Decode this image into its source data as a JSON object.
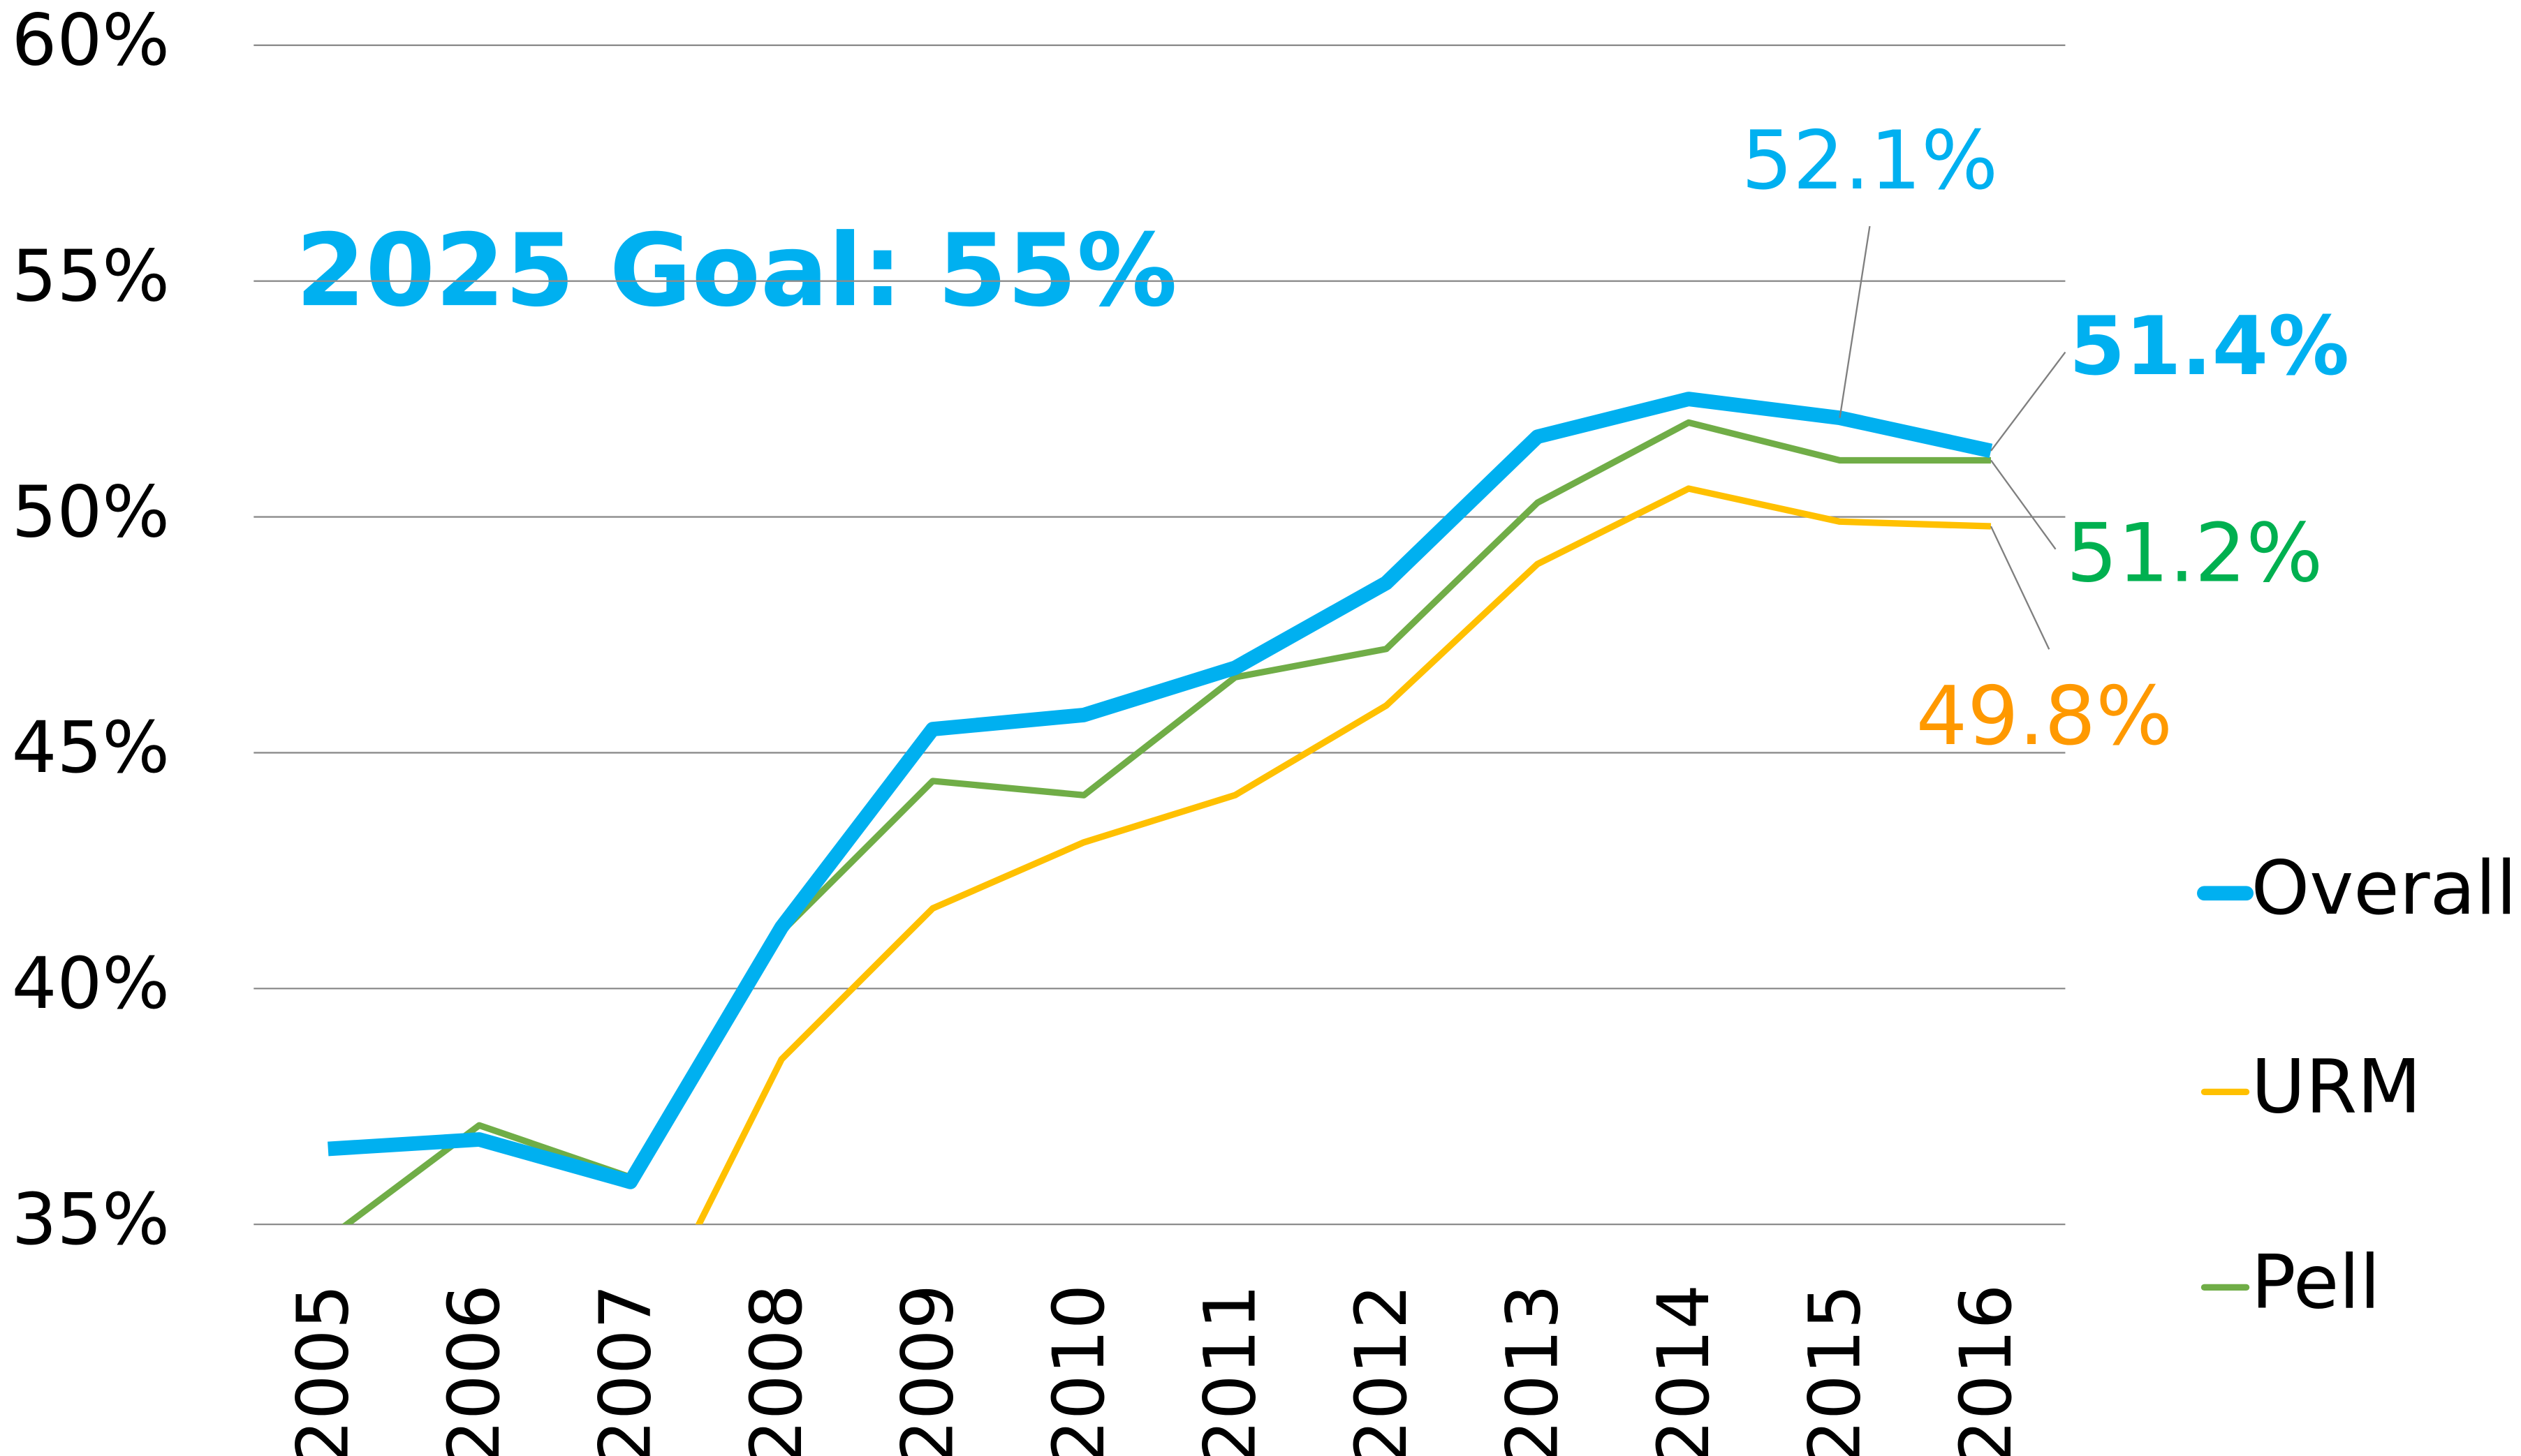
{
  "chart_data": {
    "type": "line",
    "annotation": "2025 Goal: 55%",
    "categories": [
      "2005",
      "2006",
      "2007",
      "2008",
      "2009",
      "2010",
      "2011",
      "2012",
      "2013",
      "2014",
      "2015",
      "2016"
    ],
    "series": [
      {
        "name": "Overall",
        "color": "#00b0f0",
        "label_color": "#00b0f0",
        "values": [
          36.6,
          36.8,
          35.9,
          41.3,
          45.5,
          45.8,
          46.8,
          48.6,
          51.7,
          52.5,
          52.1,
          51.4
        ],
        "value_labels": [
          null,
          null,
          null,
          null,
          null,
          null,
          null,
          null,
          null,
          null,
          "52.1%",
          "51.4%"
        ]
      },
      {
        "name": "URM",
        "color": "#ffc000",
        "label_color": "#ff9900",
        "values": [
          null,
          null,
          32.1,
          38.5,
          41.7,
          43.1,
          44.1,
          46.0,
          49.0,
          50.6,
          49.9,
          49.8
        ],
        "value_labels": [
          null,
          null,
          null,
          null,
          null,
          null,
          null,
          null,
          null,
          null,
          null,
          "49.8%"
        ]
      },
      {
        "name": "Pell",
        "color": "#70ad47",
        "label_color": "#00b050",
        "values": [
          34.7,
          37.1,
          36.0,
          41.2,
          44.4,
          44.1,
          46.6,
          47.2,
          50.3,
          52.0,
          51.2,
          51.2
        ],
        "value_labels": [
          null,
          null,
          null,
          null,
          null,
          null,
          null,
          null,
          null,
          null,
          null,
          "51.2%"
        ]
      }
    ],
    "ylim": [
      35,
      60
    ],
    "yticks": [
      {
        "value": 35,
        "label": "35%"
      },
      {
        "value": 40,
        "label": "40%"
      },
      {
        "value": 45,
        "label": "45%"
      },
      {
        "value": 50,
        "label": "50%"
      },
      {
        "value": 55,
        "label": "55%"
      },
      {
        "value": 60,
        "label": "60%"
      }
    ],
    "grid": true,
    "legend": "right"
  }
}
